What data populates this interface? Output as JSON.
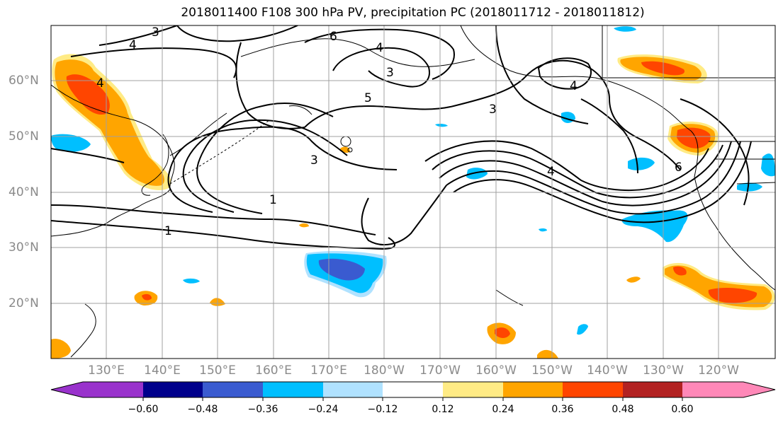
{
  "title": "2018011400 F108 300 hPa PV, precipitation PC (2018011712 - 2018011812)",
  "lat_labels": [
    "60°N",
    "50°N",
    "40°N",
    "30°N",
    "20°N"
  ],
  "lon_labels": [
    "130°E",
    "140°E",
    "150°E",
    "160°E",
    "170°E",
    "180°W",
    "170°W",
    "160°W",
    "150°W",
    "140°W",
    "130°W",
    "120°W"
  ],
  "contour_labels": [
    "3",
    "4",
    "6",
    "4",
    "3",
    "5",
    "4",
    "3",
    "4",
    "6",
    "4",
    "3",
    "1",
    "1"
  ],
  "colorbar": {
    "tick_labels": [
      "−0.60",
      "−0.48",
      "−0.36",
      "−0.24",
      "−0.12",
      "0.12",
      "0.24",
      "0.36",
      "0.48",
      "0.60"
    ],
    "colors": [
      "#9932cc",
      "#00008b",
      "#3a5bd0",
      "#00bfff",
      "#b0e2ff",
      "#ffffff",
      "#ffeb85",
      "#ffa500",
      "#ff4500",
      "#b22222",
      "#ff88b8"
    ]
  },
  "colors": {
    "orange": "#ffa500",
    "red_orange": "#ff4500",
    "light_yellow": "#ffeb85",
    "cyan": "#00bfff",
    "light_blue": "#b0e2ff",
    "royal_blue": "#3a5bd0"
  }
}
